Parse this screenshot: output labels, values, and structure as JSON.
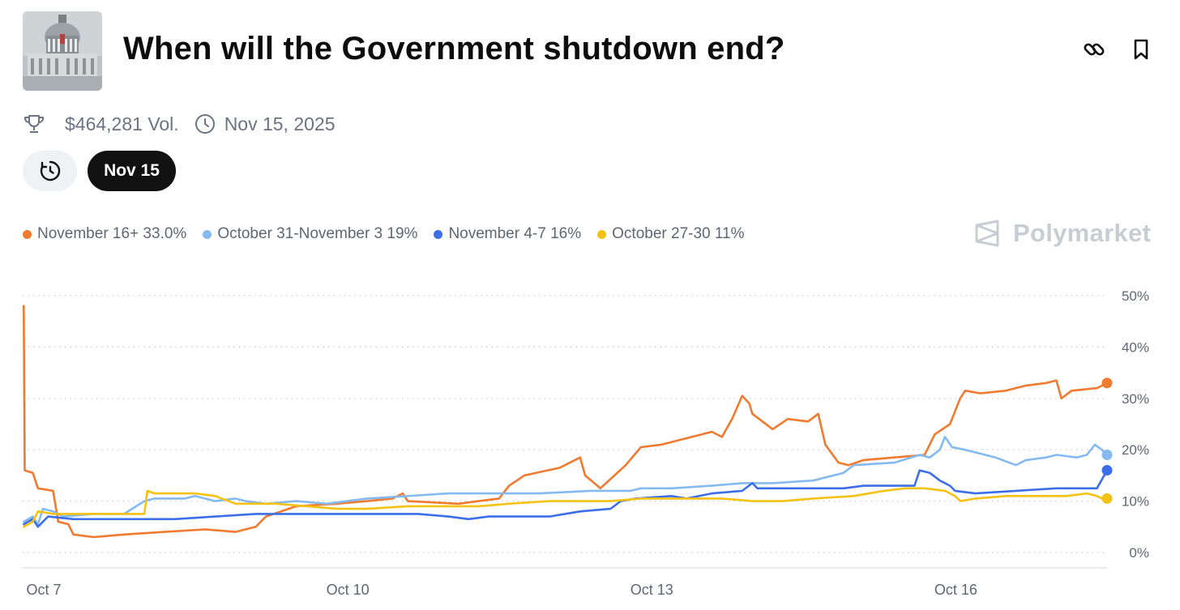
{
  "header": {
    "title": "When will the Government shutdown end?",
    "thumbnail_icon": "capitol-building-image",
    "link_icon": "link-icon",
    "bookmark_icon": "bookmark-icon"
  },
  "meta": {
    "volume": "$464,281 Vol.",
    "end_date": "Nov 15, 2025",
    "trophy_icon": "trophy-icon",
    "clock_icon": "clock-icon"
  },
  "filters": {
    "history_icon": "history-clock-icon",
    "selected_date": "Nov 15"
  },
  "legend": [
    {
      "label": "November 16+ 33.0%",
      "color": "#f07a2f"
    },
    {
      "label": "October 31-November 3 19%",
      "color": "#84baf0"
    },
    {
      "label": "November 4-7 16%",
      "color": "#3b6ee8"
    },
    {
      "label": "October 27-30 11%",
      "color": "#f5c211"
    }
  ],
  "brand": {
    "name": "Polymarket",
    "logo_icon": "polymarket-logo-icon"
  },
  "chart_data": {
    "type": "line",
    "x_domain": [
      6.8,
      17.5
    ],
    "xticks": [
      {
        "x": 7,
        "label": "Oct 7"
      },
      {
        "x": 10,
        "label": "Oct 10"
      },
      {
        "x": 13,
        "label": "Oct 13"
      },
      {
        "x": 16,
        "label": "Oct 16"
      }
    ],
    "ylim": [
      0,
      50
    ],
    "yticks": [
      {
        "value": 0,
        "label": "0%"
      },
      {
        "value": 10,
        "label": "10%"
      },
      {
        "value": 20,
        "label": "20%"
      },
      {
        "value": 30,
        "label": "30%"
      },
      {
        "value": 40,
        "label": "40%"
      },
      {
        "value": 50,
        "label": "50%"
      }
    ],
    "grid": "horizontal-dotted",
    "series": [
      {
        "name": "November 16+",
        "color": "#f07a2f",
        "points": [
          [
            6.81,
            48
          ],
          [
            6.82,
            16
          ],
          [
            6.9,
            15.5
          ],
          [
            6.95,
            12.5
          ],
          [
            7.1,
            12
          ],
          [
            7.15,
            6
          ],
          [
            7.25,
            5.5
          ],
          [
            7.3,
            3.5
          ],
          [
            7.5,
            3
          ],
          [
            7.8,
            3.5
          ],
          [
            8.2,
            4
          ],
          [
            8.6,
            4.5
          ],
          [
            8.9,
            4
          ],
          [
            9.1,
            5
          ],
          [
            9.2,
            7
          ],
          [
            9.5,
            9
          ],
          [
            9.9,
            9.5
          ],
          [
            10.2,
            10
          ],
          [
            10.45,
            10.5
          ],
          [
            10.55,
            11.5
          ],
          [
            10.6,
            10
          ],
          [
            11.1,
            9.5
          ],
          [
            11.3,
            10
          ],
          [
            11.5,
            10.5
          ],
          [
            11.6,
            13
          ],
          [
            11.75,
            15
          ],
          [
            12.1,
            16.5
          ],
          [
            12.3,
            18.5
          ],
          [
            12.35,
            15
          ],
          [
            12.5,
            12.5
          ],
          [
            12.75,
            17
          ],
          [
            12.9,
            20.5
          ],
          [
            13.1,
            21
          ],
          [
            13.5,
            23
          ],
          [
            13.6,
            23.5
          ],
          [
            13.7,
            22.5
          ],
          [
            13.8,
            26
          ],
          [
            13.9,
            30.5
          ],
          [
            13.97,
            29
          ],
          [
            14.0,
            27
          ],
          [
            14.2,
            24
          ],
          [
            14.35,
            26
          ],
          [
            14.55,
            25.5
          ],
          [
            14.65,
            27
          ],
          [
            14.72,
            21
          ],
          [
            14.85,
            17.5
          ],
          [
            14.95,
            17
          ],
          [
            15.1,
            18
          ],
          [
            15.4,
            18.5
          ],
          [
            15.7,
            19
          ],
          [
            15.8,
            23
          ],
          [
            15.95,
            25
          ],
          [
            16.05,
            30
          ],
          [
            16.1,
            31.5
          ],
          [
            16.25,
            31
          ],
          [
            16.5,
            31.5
          ],
          [
            16.7,
            32.5
          ],
          [
            16.9,
            33
          ],
          [
            17.0,
            33.5
          ],
          [
            17.05,
            30
          ],
          [
            17.15,
            31.5
          ],
          [
            17.4,
            32
          ],
          [
            17.5,
            33
          ]
        ]
      },
      {
        "name": "October 31-November 3",
        "color": "#84baf0",
        "points": [
          [
            6.81,
            6
          ],
          [
            6.9,
            7
          ],
          [
            6.95,
            5.5
          ],
          [
            7.0,
            8.5
          ],
          [
            7.1,
            8
          ],
          [
            7.2,
            7
          ],
          [
            7.5,
            7.5
          ],
          [
            7.8,
            7.5
          ],
          [
            8.0,
            10
          ],
          [
            8.1,
            10.5
          ],
          [
            8.4,
            10.5
          ],
          [
            8.5,
            11
          ],
          [
            8.7,
            10
          ],
          [
            8.9,
            10.5
          ],
          [
            9.0,
            10
          ],
          [
            9.2,
            9.5
          ],
          [
            9.5,
            10
          ],
          [
            9.8,
            9.5
          ],
          [
            10.0,
            10
          ],
          [
            10.2,
            10.5
          ],
          [
            10.6,
            11
          ],
          [
            11.0,
            11.5
          ],
          [
            11.4,
            11.5
          ],
          [
            11.9,
            11.5
          ],
          [
            12.4,
            12
          ],
          [
            12.8,
            12
          ],
          [
            12.9,
            12.5
          ],
          [
            13.2,
            12.5
          ],
          [
            13.6,
            13
          ],
          [
            13.9,
            13.5
          ],
          [
            14.2,
            13.5
          ],
          [
            14.6,
            14
          ],
          [
            14.9,
            15.5
          ],
          [
            15.0,
            17
          ],
          [
            15.4,
            17.5
          ],
          [
            15.65,
            19
          ],
          [
            15.75,
            18.5
          ],
          [
            15.85,
            20
          ],
          [
            15.9,
            22.5
          ],
          [
            15.97,
            20.5
          ],
          [
            16.1,
            20
          ],
          [
            16.4,
            18.5
          ],
          [
            16.6,
            17
          ],
          [
            16.7,
            18
          ],
          [
            16.9,
            18.5
          ],
          [
            17.0,
            19
          ],
          [
            17.2,
            18.5
          ],
          [
            17.3,
            19
          ],
          [
            17.38,
            21
          ],
          [
            17.45,
            20
          ],
          [
            17.5,
            19
          ]
        ]
      },
      {
        "name": "November 4-7",
        "color": "#3b6ee8",
        "points": [
          [
            6.81,
            5.5
          ],
          [
            6.9,
            6.5
          ],
          [
            6.95,
            5
          ],
          [
            7.05,
            7
          ],
          [
            7.3,
            6.5
          ],
          [
            7.8,
            6.5
          ],
          [
            8.3,
            6.5
          ],
          [
            9.1,
            7.5
          ],
          [
            9.9,
            7.5
          ],
          [
            10.7,
            7.5
          ],
          [
            11.0,
            7
          ],
          [
            11.2,
            6.5
          ],
          [
            11.4,
            7
          ],
          [
            12.0,
            7
          ],
          [
            12.3,
            8
          ],
          [
            12.6,
            8.5
          ],
          [
            12.7,
            10
          ],
          [
            12.85,
            10.5
          ],
          [
            13.2,
            11
          ],
          [
            13.35,
            10.5
          ],
          [
            13.6,
            11.5
          ],
          [
            13.9,
            12
          ],
          [
            14.0,
            13.5
          ],
          [
            14.05,
            12.5
          ],
          [
            14.5,
            12.5
          ],
          [
            14.9,
            12.5
          ],
          [
            15.1,
            13
          ],
          [
            15.4,
            13
          ],
          [
            15.6,
            13
          ],
          [
            15.65,
            16
          ],
          [
            15.75,
            15.5
          ],
          [
            15.85,
            14
          ],
          [
            15.95,
            13
          ],
          [
            16.0,
            12
          ],
          [
            16.2,
            11.5
          ],
          [
            16.6,
            12
          ],
          [
            17.0,
            12.5
          ],
          [
            17.4,
            12.5
          ],
          [
            17.5,
            16
          ]
        ]
      },
      {
        "name": "October 27-30",
        "color": "#f5c211",
        "points": [
          [
            6.81,
            5
          ],
          [
            6.9,
            6
          ],
          [
            6.95,
            8
          ],
          [
            7.1,
            7.5
          ],
          [
            7.5,
            7.5
          ],
          [
            7.9,
            7.5
          ],
          [
            8.0,
            7.5
          ],
          [
            8.03,
            12
          ],
          [
            8.1,
            11.5
          ],
          [
            8.3,
            11.5
          ],
          [
            8.5,
            11.5
          ],
          [
            8.7,
            11
          ],
          [
            8.9,
            9.5
          ],
          [
            9.3,
            9.5
          ],
          [
            9.6,
            9
          ],
          [
            9.9,
            8.5
          ],
          [
            10.2,
            8.5
          ],
          [
            10.6,
            9
          ],
          [
            11.0,
            9
          ],
          [
            11.3,
            9
          ],
          [
            11.6,
            9.5
          ],
          [
            12.0,
            10
          ],
          [
            12.3,
            10
          ],
          [
            12.6,
            10
          ],
          [
            12.9,
            10.5
          ],
          [
            13.3,
            10.5
          ],
          [
            13.7,
            10.5
          ],
          [
            14.0,
            10
          ],
          [
            14.3,
            10
          ],
          [
            14.6,
            10.5
          ],
          [
            15.0,
            11
          ],
          [
            15.3,
            12
          ],
          [
            15.5,
            12.5
          ],
          [
            15.7,
            12.5
          ],
          [
            15.9,
            12
          ],
          [
            16.0,
            11
          ],
          [
            16.05,
            10
          ],
          [
            16.2,
            10.5
          ],
          [
            16.5,
            11
          ],
          [
            16.8,
            11
          ],
          [
            17.1,
            11
          ],
          [
            17.3,
            11.5
          ],
          [
            17.4,
            11
          ],
          [
            17.45,
            10.5
          ],
          [
            17.5,
            10.5
          ]
        ]
      }
    ]
  }
}
